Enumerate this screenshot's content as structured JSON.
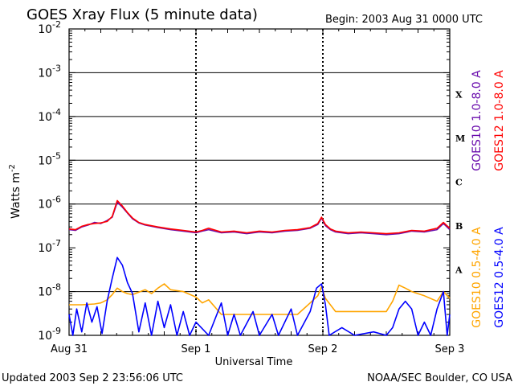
{
  "chart_data": {
    "type": "line",
    "title": "GOES Xray Flux (5 minute data)",
    "begin_label": "Begin:  2003 Aug 31 0000 UTC",
    "ylabel": "Watts m",
    "ylabel_sup": "-2",
    "xlabel": "Universal Time",
    "footer_left": "Updated 2003 Sep  2 23:56:06 UTC",
    "footer_right": "NOAA/SEC Boulder, CO USA",
    "y_scale": "log",
    "ylim": [
      1e-09,
      0.01
    ],
    "y_ticks": [
      {
        "base": "10",
        "exp": "-2",
        "value": 0.01
      },
      {
        "base": "10",
        "exp": "-3",
        "value": 0.001
      },
      {
        "base": "10",
        "exp": "-4",
        "value": 0.0001
      },
      {
        "base": "10",
        "exp": "-5",
        "value": 1e-05
      },
      {
        "base": "10",
        "exp": "-6",
        "value": 1e-06
      },
      {
        "base": "10",
        "exp": "-7",
        "value": 1e-07
      },
      {
        "base": "10",
        "exp": "-8",
        "value": 1e-08
      },
      {
        "base": "10",
        "exp": "-9",
        "value": 1e-09
      }
    ],
    "xlim_days": [
      0,
      3
    ],
    "x_ticks": [
      {
        "label": "Aug 31",
        "day": 0
      },
      {
        "label": "Sep 1",
        "day": 1
      },
      {
        "label": "Sep 2",
        "day": 2
      },
      {
        "label": "Sep 3",
        "day": 3
      }
    ],
    "flare_classes": [
      {
        "label": "X",
        "value": 0.000316
      },
      {
        "label": "M",
        "value": 3.16e-05
      },
      {
        "label": "C",
        "value": 3.16e-06
      },
      {
        "label": "B",
        "value": 3.16e-07
      },
      {
        "label": "A",
        "value": 3.16e-08
      }
    ],
    "grid": "horizontal solid at each decade above 1e-9 excluding 1e-7; dotted vertical at day boundaries",
    "legend_placement": "right, vertical text",
    "series": [
      {
        "name": "GOES10 1.0-8.0 A",
        "color": "#6a0dad",
        "points": [
          [
            0.0,
            2.6e-07
          ],
          [
            0.05,
            2.5e-07
          ],
          [
            0.1,
            3e-07
          ],
          [
            0.15,
            3.3e-07
          ],
          [
            0.2,
            3.8e-07
          ],
          [
            0.25,
            3.6e-07
          ],
          [
            0.3,
            4.2e-07
          ],
          [
            0.34,
            5e-07
          ],
          [
            0.38,
            1.1e-06
          ],
          [
            0.42,
            8.5e-07
          ],
          [
            0.46,
            6.2e-07
          ],
          [
            0.5,
            4.6e-07
          ],
          [
            0.55,
            3.7e-07
          ],
          [
            0.6,
            3.3e-07
          ],
          [
            0.7,
            2.9e-07
          ],
          [
            0.8,
            2.6e-07
          ],
          [
            0.9,
            2.4e-07
          ],
          [
            1.0,
            2.2e-07
          ],
          [
            1.05,
            2.4e-07
          ],
          [
            1.1,
            2.6e-07
          ],
          [
            1.2,
            2.2e-07
          ],
          [
            1.3,
            2.3e-07
          ],
          [
            1.4,
            2.1e-07
          ],
          [
            1.5,
            2.3e-07
          ],
          [
            1.6,
            2.2e-07
          ],
          [
            1.7,
            2.4e-07
          ],
          [
            1.8,
            2.5e-07
          ],
          [
            1.9,
            2.8e-07
          ],
          [
            1.96,
            3.4e-07
          ],
          [
            1.99,
            4.8e-07
          ],
          [
            2.02,
            3.2e-07
          ],
          [
            2.06,
            2.6e-07
          ],
          [
            2.1,
            2.3e-07
          ],
          [
            2.2,
            2.1e-07
          ],
          [
            2.3,
            2.2e-07
          ],
          [
            2.4,
            2.1e-07
          ],
          [
            2.5,
            2e-07
          ],
          [
            2.6,
            2.1e-07
          ],
          [
            2.7,
            2.4e-07
          ],
          [
            2.8,
            2.3e-07
          ],
          [
            2.9,
            2.6e-07
          ],
          [
            2.95,
            3.6e-07
          ],
          [
            3.0,
            2.6e-07
          ]
        ]
      },
      {
        "name": "GOES12 1.0-8.0 A",
        "color": "#ff0000",
        "points": [
          [
            0.0,
            2.7e-07
          ],
          [
            0.05,
            2.6e-07
          ],
          [
            0.1,
            3.1e-07
          ],
          [
            0.15,
            3.4e-07
          ],
          [
            0.2,
            3.6e-07
          ],
          [
            0.25,
            3.7e-07
          ],
          [
            0.3,
            4e-07
          ],
          [
            0.34,
            5.2e-07
          ],
          [
            0.38,
            1.2e-06
          ],
          [
            0.42,
            9e-07
          ],
          [
            0.46,
            6.4e-07
          ],
          [
            0.5,
            4.8e-07
          ],
          [
            0.55,
            3.8e-07
          ],
          [
            0.6,
            3.4e-07
          ],
          [
            0.7,
            3e-07
          ],
          [
            0.8,
            2.7e-07
          ],
          [
            0.9,
            2.5e-07
          ],
          [
            1.0,
            2.3e-07
          ],
          [
            1.05,
            2.5e-07
          ],
          [
            1.1,
            2.8e-07
          ],
          [
            1.2,
            2.3e-07
          ],
          [
            1.3,
            2.4e-07
          ],
          [
            1.4,
            2.2e-07
          ],
          [
            1.5,
            2.4e-07
          ],
          [
            1.6,
            2.3e-07
          ],
          [
            1.7,
            2.5e-07
          ],
          [
            1.8,
            2.6e-07
          ],
          [
            1.9,
            2.9e-07
          ],
          [
            1.96,
            3.6e-07
          ],
          [
            1.99,
            5e-07
          ],
          [
            2.02,
            3.4e-07
          ],
          [
            2.06,
            2.7e-07
          ],
          [
            2.1,
            2.4e-07
          ],
          [
            2.2,
            2.2e-07
          ],
          [
            2.3,
            2.3e-07
          ],
          [
            2.4,
            2.2e-07
          ],
          [
            2.5,
            2.1e-07
          ],
          [
            2.6,
            2.2e-07
          ],
          [
            2.7,
            2.5e-07
          ],
          [
            2.8,
            2.4e-07
          ],
          [
            2.9,
            2.8e-07
          ],
          [
            2.95,
            3.8e-07
          ],
          [
            3.0,
            2.8e-07
          ]
        ]
      },
      {
        "name": "GOES10 0.5-4.0 A",
        "color": "#ffa500",
        "points": [
          [
            0.0,
            5e-09
          ],
          [
            0.05,
            5e-09
          ],
          [
            0.1,
            5e-09
          ],
          [
            0.2,
            5.2e-09
          ],
          [
            0.25,
            5.5e-09
          ],
          [
            0.3,
            6.5e-09
          ],
          [
            0.34,
            8.5e-09
          ],
          [
            0.38,
            1.2e-08
          ],
          [
            0.42,
            1e-08
          ],
          [
            0.46,
            9e-09
          ],
          [
            0.5,
            8.5e-09
          ],
          [
            0.6,
            1.1e-08
          ],
          [
            0.65,
            9e-09
          ],
          [
            0.7,
            1.2e-08
          ],
          [
            0.75,
            1.5e-08
          ],
          [
            0.8,
            1.1e-08
          ],
          [
            0.9,
            1e-08
          ],
          [
            1.0,
            7.5e-09
          ],
          [
            1.05,
            5.5e-09
          ],
          [
            1.1,
            6.5e-09
          ],
          [
            1.2,
            3e-09
          ],
          [
            1.4,
            3e-09
          ],
          [
            1.6,
            3e-09
          ],
          [
            1.8,
            3e-09
          ],
          [
            1.9,
            5.5e-09
          ],
          [
            1.96,
            8e-09
          ],
          [
            1.99,
            1.3e-08
          ],
          [
            2.02,
            7e-09
          ],
          [
            2.1,
            3.5e-09
          ],
          [
            2.3,
            3.5e-09
          ],
          [
            2.5,
            3.5e-09
          ],
          [
            2.55,
            6e-09
          ],
          [
            2.6,
            1.4e-08
          ],
          [
            2.65,
            1.2e-08
          ],
          [
            2.7,
            1e-08
          ],
          [
            2.8,
            8e-09
          ],
          [
            2.9,
            6e-09
          ],
          [
            2.95,
            1e-08
          ],
          [
            3.0,
            7e-09
          ]
        ]
      },
      {
        "name": "GOES12 0.5-4.0 A",
        "color": "#0000ff",
        "points": [
          [
            0.0,
            3e-09
          ],
          [
            0.03,
            1e-09
          ],
          [
            0.06,
            4e-09
          ],
          [
            0.1,
            1.2e-09
          ],
          [
            0.14,
            5.5e-09
          ],
          [
            0.18,
            2e-09
          ],
          [
            0.22,
            4.5e-09
          ],
          [
            0.26,
            1.1e-09
          ],
          [
            0.3,
            6e-09
          ],
          [
            0.34,
            2e-08
          ],
          [
            0.38,
            6e-08
          ],
          [
            0.42,
            4e-08
          ],
          [
            0.46,
            1.6e-08
          ],
          [
            0.5,
            9e-09
          ],
          [
            0.55,
            1.2e-09
          ],
          [
            0.6,
            5.5e-09
          ],
          [
            0.65,
            1e-09
          ],
          [
            0.7,
            6e-09
          ],
          [
            0.75,
            1.5e-09
          ],
          [
            0.8,
            5e-09
          ],
          [
            0.85,
            1e-09
          ],
          [
            0.9,
            3.5e-09
          ],
          [
            0.95,
            1e-09
          ],
          [
            1.0,
            2e-09
          ],
          [
            1.1,
            1e-09
          ],
          [
            1.2,
            5.5e-09
          ],
          [
            1.25,
            1e-09
          ],
          [
            1.3,
            3e-09
          ],
          [
            1.35,
            1e-09
          ],
          [
            1.45,
            3.5e-09
          ],
          [
            1.5,
            1e-09
          ],
          [
            1.6,
            3e-09
          ],
          [
            1.65,
            1e-09
          ],
          [
            1.75,
            4e-09
          ],
          [
            1.8,
            1e-09
          ],
          [
            1.9,
            3.5e-09
          ],
          [
            1.95,
            1.2e-08
          ],
          [
            1.99,
            1.5e-08
          ],
          [
            2.02,
            5e-09
          ],
          [
            2.05,
            1e-09
          ],
          [
            2.15,
            1.5e-09
          ],
          [
            2.25,
            1e-09
          ],
          [
            2.4,
            1.2e-09
          ],
          [
            2.5,
            1e-09
          ],
          [
            2.55,
            1.5e-09
          ],
          [
            2.6,
            4e-09
          ],
          [
            2.65,
            6e-09
          ],
          [
            2.7,
            4e-09
          ],
          [
            2.75,
            1e-09
          ],
          [
            2.8,
            2e-09
          ],
          [
            2.85,
            1e-09
          ],
          [
            2.9,
            4e-09
          ],
          [
            2.95,
            1e-08
          ],
          [
            2.98,
            1e-09
          ],
          [
            3.0,
            3e-09
          ]
        ]
      }
    ]
  }
}
